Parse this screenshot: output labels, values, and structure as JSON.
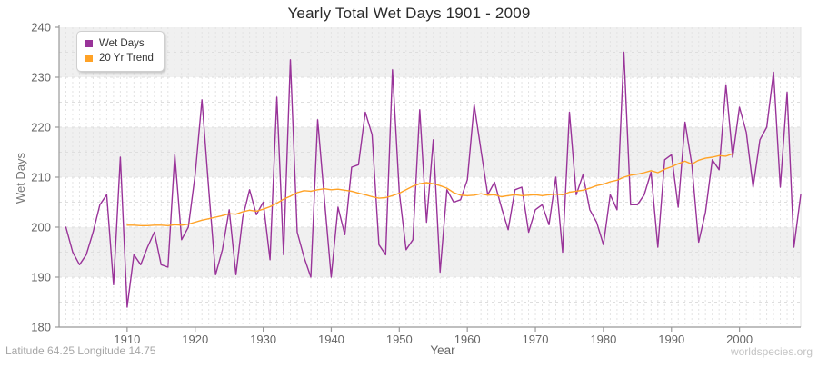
{
  "header": {
    "title": "Yearly Total Wet Days 1901 - 2009"
  },
  "legend": [
    {
      "label": "Wet Days",
      "color": "#993399"
    },
    {
      "label": "20 Yr Trend",
      "color": "#FFA226"
    }
  ],
  "axes": {
    "y_label": "Wet Days",
    "x_label": "Year",
    "y_ticks": [
      180,
      190,
      200,
      210,
      220,
      230,
      240
    ],
    "x_ticks": [
      1910,
      1920,
      1930,
      1940,
      1950,
      1960,
      1970,
      1980,
      1990,
      2000
    ]
  },
  "footer": {
    "left": "Latitude 64.25 Longitude 14.75",
    "right": "worldspecies.org"
  },
  "chart_data": {
    "type": "line",
    "title": "Yearly Total Wet Days 1901 - 2009",
    "xlabel": "Year",
    "ylabel": "Wet Days",
    "x_range_edges": [
      1900,
      2009
    ],
    "ylim": [
      180,
      240
    ],
    "grid": {
      "vertical": "dashed, every year",
      "horizontal": "dashed every 5, shaded bands every 10"
    },
    "plot_bands": [
      [
        190,
        200
      ],
      [
        210,
        220
      ],
      [
        230,
        240
      ]
    ],
    "band_color": "#f0f0f0",
    "legend_position": "top-left",
    "series": [
      {
        "name": "Wet Days",
        "color": "#993399",
        "x_start": 1901,
        "values": [
          200,
          195,
          192.5,
          194.5,
          199,
          204.5,
          206.5,
          188.5,
          214,
          184,
          194.5,
          192.5,
          196,
          199,
          192.5,
          192,
          214.5,
          197.5,
          200,
          210.5,
          225.5,
          207.5,
          190.5,
          195.5,
          203.5,
          190.5,
          202,
          207.5,
          202.5,
          205,
          193.5,
          226,
          194.5,
          233.5,
          199,
          194,
          190,
          221.5,
          205.5,
          190,
          204,
          198.5,
          212,
          212.5,
          223,
          218.5,
          196.5,
          194.5,
          231.5,
          207,
          195.5,
          197.5,
          223.5,
          201,
          217.5,
          191,
          207.5,
          205,
          205.5,
          209.5,
          224.5,
          215.5,
          206.5,
          209,
          204,
          199.5,
          207.5,
          208,
          199,
          203.5,
          204.5,
          200.5,
          210,
          195,
          223,
          206.5,
          210.5,
          203.5,
          201,
          196.5,
          206.5,
          203.5,
          235,
          204.5,
          204.5,
          206.5,
          211,
          196,
          213.5,
          214.5,
          204,
          221,
          212.5,
          197,
          203,
          213.5,
          211.5,
          228.5,
          214,
          224,
          219,
          208,
          217.5,
          220,
          231,
          208,
          227,
          196,
          206.5
        ]
      },
      {
        "name": "20 Yr Trend",
        "color": "#FFA226",
        "x_start": 1910,
        "values": [
          200.4,
          200.4,
          200.3,
          200.3,
          200.4,
          200.4,
          200.3,
          200.5,
          200.4,
          200.6,
          201,
          201.4,
          201.7,
          202,
          202.3,
          202.7,
          202.6,
          203.1,
          203.4,
          203.2,
          203.6,
          204.1,
          204.8,
          205.6,
          206.2,
          206.9,
          207.3,
          207.2,
          207.5,
          207.7,
          207.5,
          207.6,
          207.4,
          207.2,
          206.8,
          206.5,
          206.1,
          205.8,
          205.9,
          206.3,
          206.8,
          207.5,
          208.2,
          208.7,
          208.9,
          208.7,
          208.3,
          207.8,
          206.9,
          206.4,
          206.3,
          206.4,
          206.7,
          206.4,
          206.5,
          206.1,
          206.3,
          206.5,
          206.3,
          206.4,
          206.5,
          206.3,
          206.5,
          206.6,
          206.5,
          207,
          207.2,
          207.4,
          207.8,
          208.3,
          208.6,
          209.1,
          209.4,
          210,
          210.4,
          210.6,
          210.9,
          211.3,
          210.9,
          211.6,
          212.1,
          212.7,
          213.2,
          212.6,
          213.4,
          213.8,
          214,
          214.3,
          214.2,
          214.7
        ]
      }
    ]
  }
}
